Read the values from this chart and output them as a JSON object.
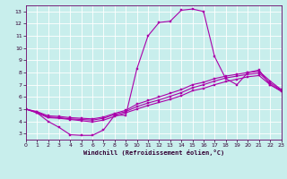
{
  "bg_color": "#c8eeec",
  "line_color": "#aa00aa",
  "grid_color": "#b8dede",
  "xlim": [
    0,
    23
  ],
  "ylim": [
    2.5,
    13.5
  ],
  "xticks": [
    0,
    1,
    2,
    3,
    4,
    5,
    6,
    7,
    8,
    9,
    10,
    11,
    12,
    13,
    14,
    15,
    16,
    17,
    18,
    19,
    20,
    21,
    22,
    23
  ],
  "yticks": [
    3,
    4,
    5,
    6,
    7,
    8,
    9,
    10,
    11,
    12,
    13
  ],
  "xlabel": "Windchill (Refroidissement éolien,°C)",
  "line1_x": [
    0,
    1,
    2,
    3,
    4,
    5,
    6,
    7,
    8,
    9,
    10,
    11,
    12,
    13,
    14,
    15,
    16,
    17,
    18,
    19,
    20,
    21,
    22,
    23
  ],
  "line1_y": [
    5.0,
    4.7,
    4.0,
    3.5,
    2.9,
    2.85,
    2.85,
    3.3,
    4.5,
    4.5,
    8.3,
    11.0,
    12.1,
    12.2,
    13.1,
    13.2,
    13.0,
    9.3,
    7.5,
    7.0,
    8.0,
    8.2,
    7.0,
    6.5
  ],
  "line2_x": [
    0,
    1,
    2,
    3,
    4,
    5,
    6,
    7,
    8,
    9,
    10,
    11,
    12,
    13,
    14,
    15,
    16,
    17,
    18,
    19,
    20,
    21,
    22,
    23
  ],
  "line2_y": [
    5.0,
    4.8,
    4.45,
    4.4,
    4.3,
    4.25,
    4.2,
    4.35,
    4.65,
    4.9,
    5.4,
    5.7,
    6.0,
    6.3,
    6.6,
    7.0,
    7.2,
    7.5,
    7.7,
    7.85,
    8.0,
    8.1,
    7.3,
    6.6
  ],
  "line3_x": [
    0,
    1,
    2,
    3,
    4,
    5,
    6,
    7,
    8,
    9,
    10,
    11,
    12,
    13,
    14,
    15,
    16,
    17,
    18,
    19,
    20,
    21,
    22,
    23
  ],
  "line3_y": [
    5.0,
    4.75,
    4.35,
    4.3,
    4.2,
    4.15,
    4.1,
    4.25,
    4.55,
    4.8,
    5.2,
    5.5,
    5.75,
    6.05,
    6.35,
    6.75,
    7.0,
    7.3,
    7.55,
    7.7,
    7.85,
    7.95,
    7.15,
    6.55
  ],
  "line4_x": [
    0,
    1,
    2,
    3,
    4,
    5,
    6,
    7,
    8,
    9,
    10,
    11,
    12,
    13,
    14,
    15,
    16,
    17,
    18,
    19,
    20,
    21,
    22,
    23
  ],
  "line4_y": [
    5.0,
    4.7,
    4.3,
    4.25,
    4.15,
    4.05,
    3.95,
    4.1,
    4.4,
    4.7,
    5.0,
    5.3,
    5.55,
    5.8,
    6.1,
    6.5,
    6.7,
    7.0,
    7.25,
    7.45,
    7.65,
    7.75,
    7.0,
    6.45
  ]
}
